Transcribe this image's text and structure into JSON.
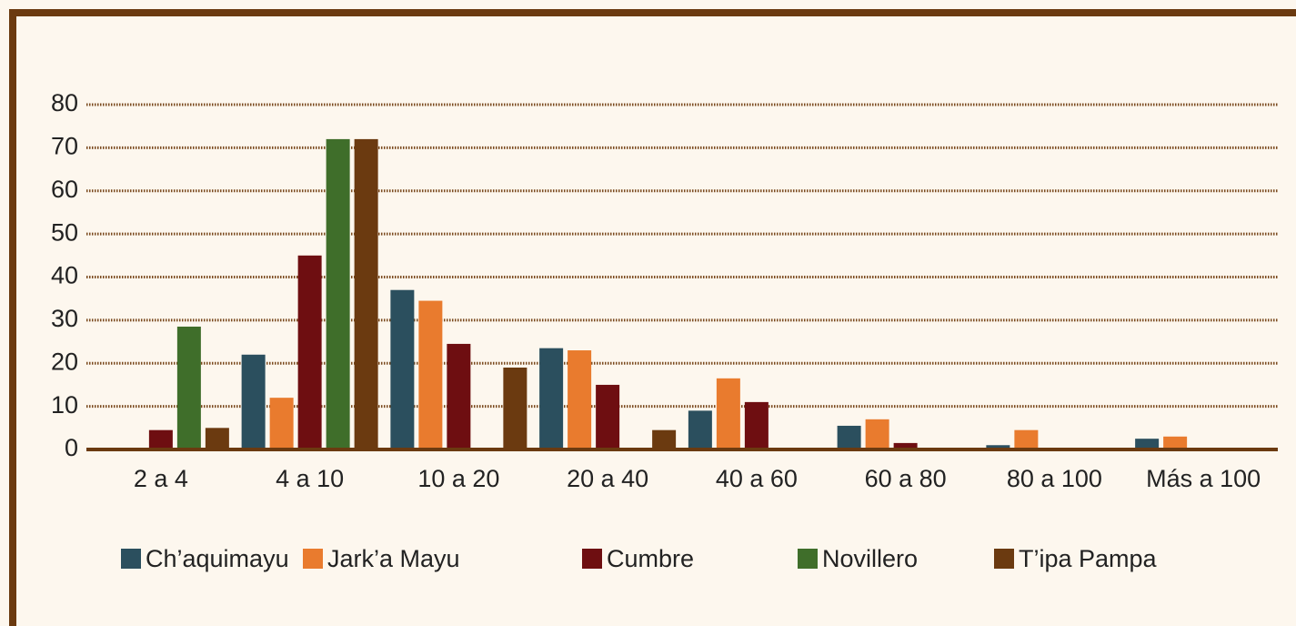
{
  "chart_data": {
    "type": "bar",
    "categories": [
      "2 a 4",
      "4 a 10",
      "10 a 20",
      "20 a 40",
      "40 a 60",
      "60 a 80",
      "80 a 100",
      "Más a 100"
    ],
    "series": [
      {
        "name": "Ch’aquimayu",
        "color": "#2b4f5e",
        "values": [
          0,
          22,
          37,
          23.5,
          9,
          5.5,
          1,
          2.5
        ]
      },
      {
        "name": "Jark’a Mayu",
        "color": "#e97b2e",
        "values": [
          0,
          12,
          34.5,
          23,
          16.5,
          7,
          4.5,
          3
        ]
      },
      {
        "name": "Cumbre",
        "color": "#6e0e11",
        "values": [
          4.5,
          45,
          24.5,
          15,
          11,
          1.5,
          0,
          0
        ]
      },
      {
        "name": "Novillero",
        "color": "#3f6e2a",
        "values": [
          28.5,
          72,
          0,
          0,
          0,
          0,
          0,
          0
        ]
      },
      {
        "name": "T’ipa Pampa",
        "color": "#6b3a10",
        "values": [
          5,
          72,
          19,
          4.5,
          0,
          0,
          0,
          0
        ]
      }
    ],
    "ylim": [
      0,
      80
    ],
    "yticks": [
      0,
      10,
      20,
      30,
      40,
      50,
      60,
      70,
      80
    ],
    "grid": true
  }
}
